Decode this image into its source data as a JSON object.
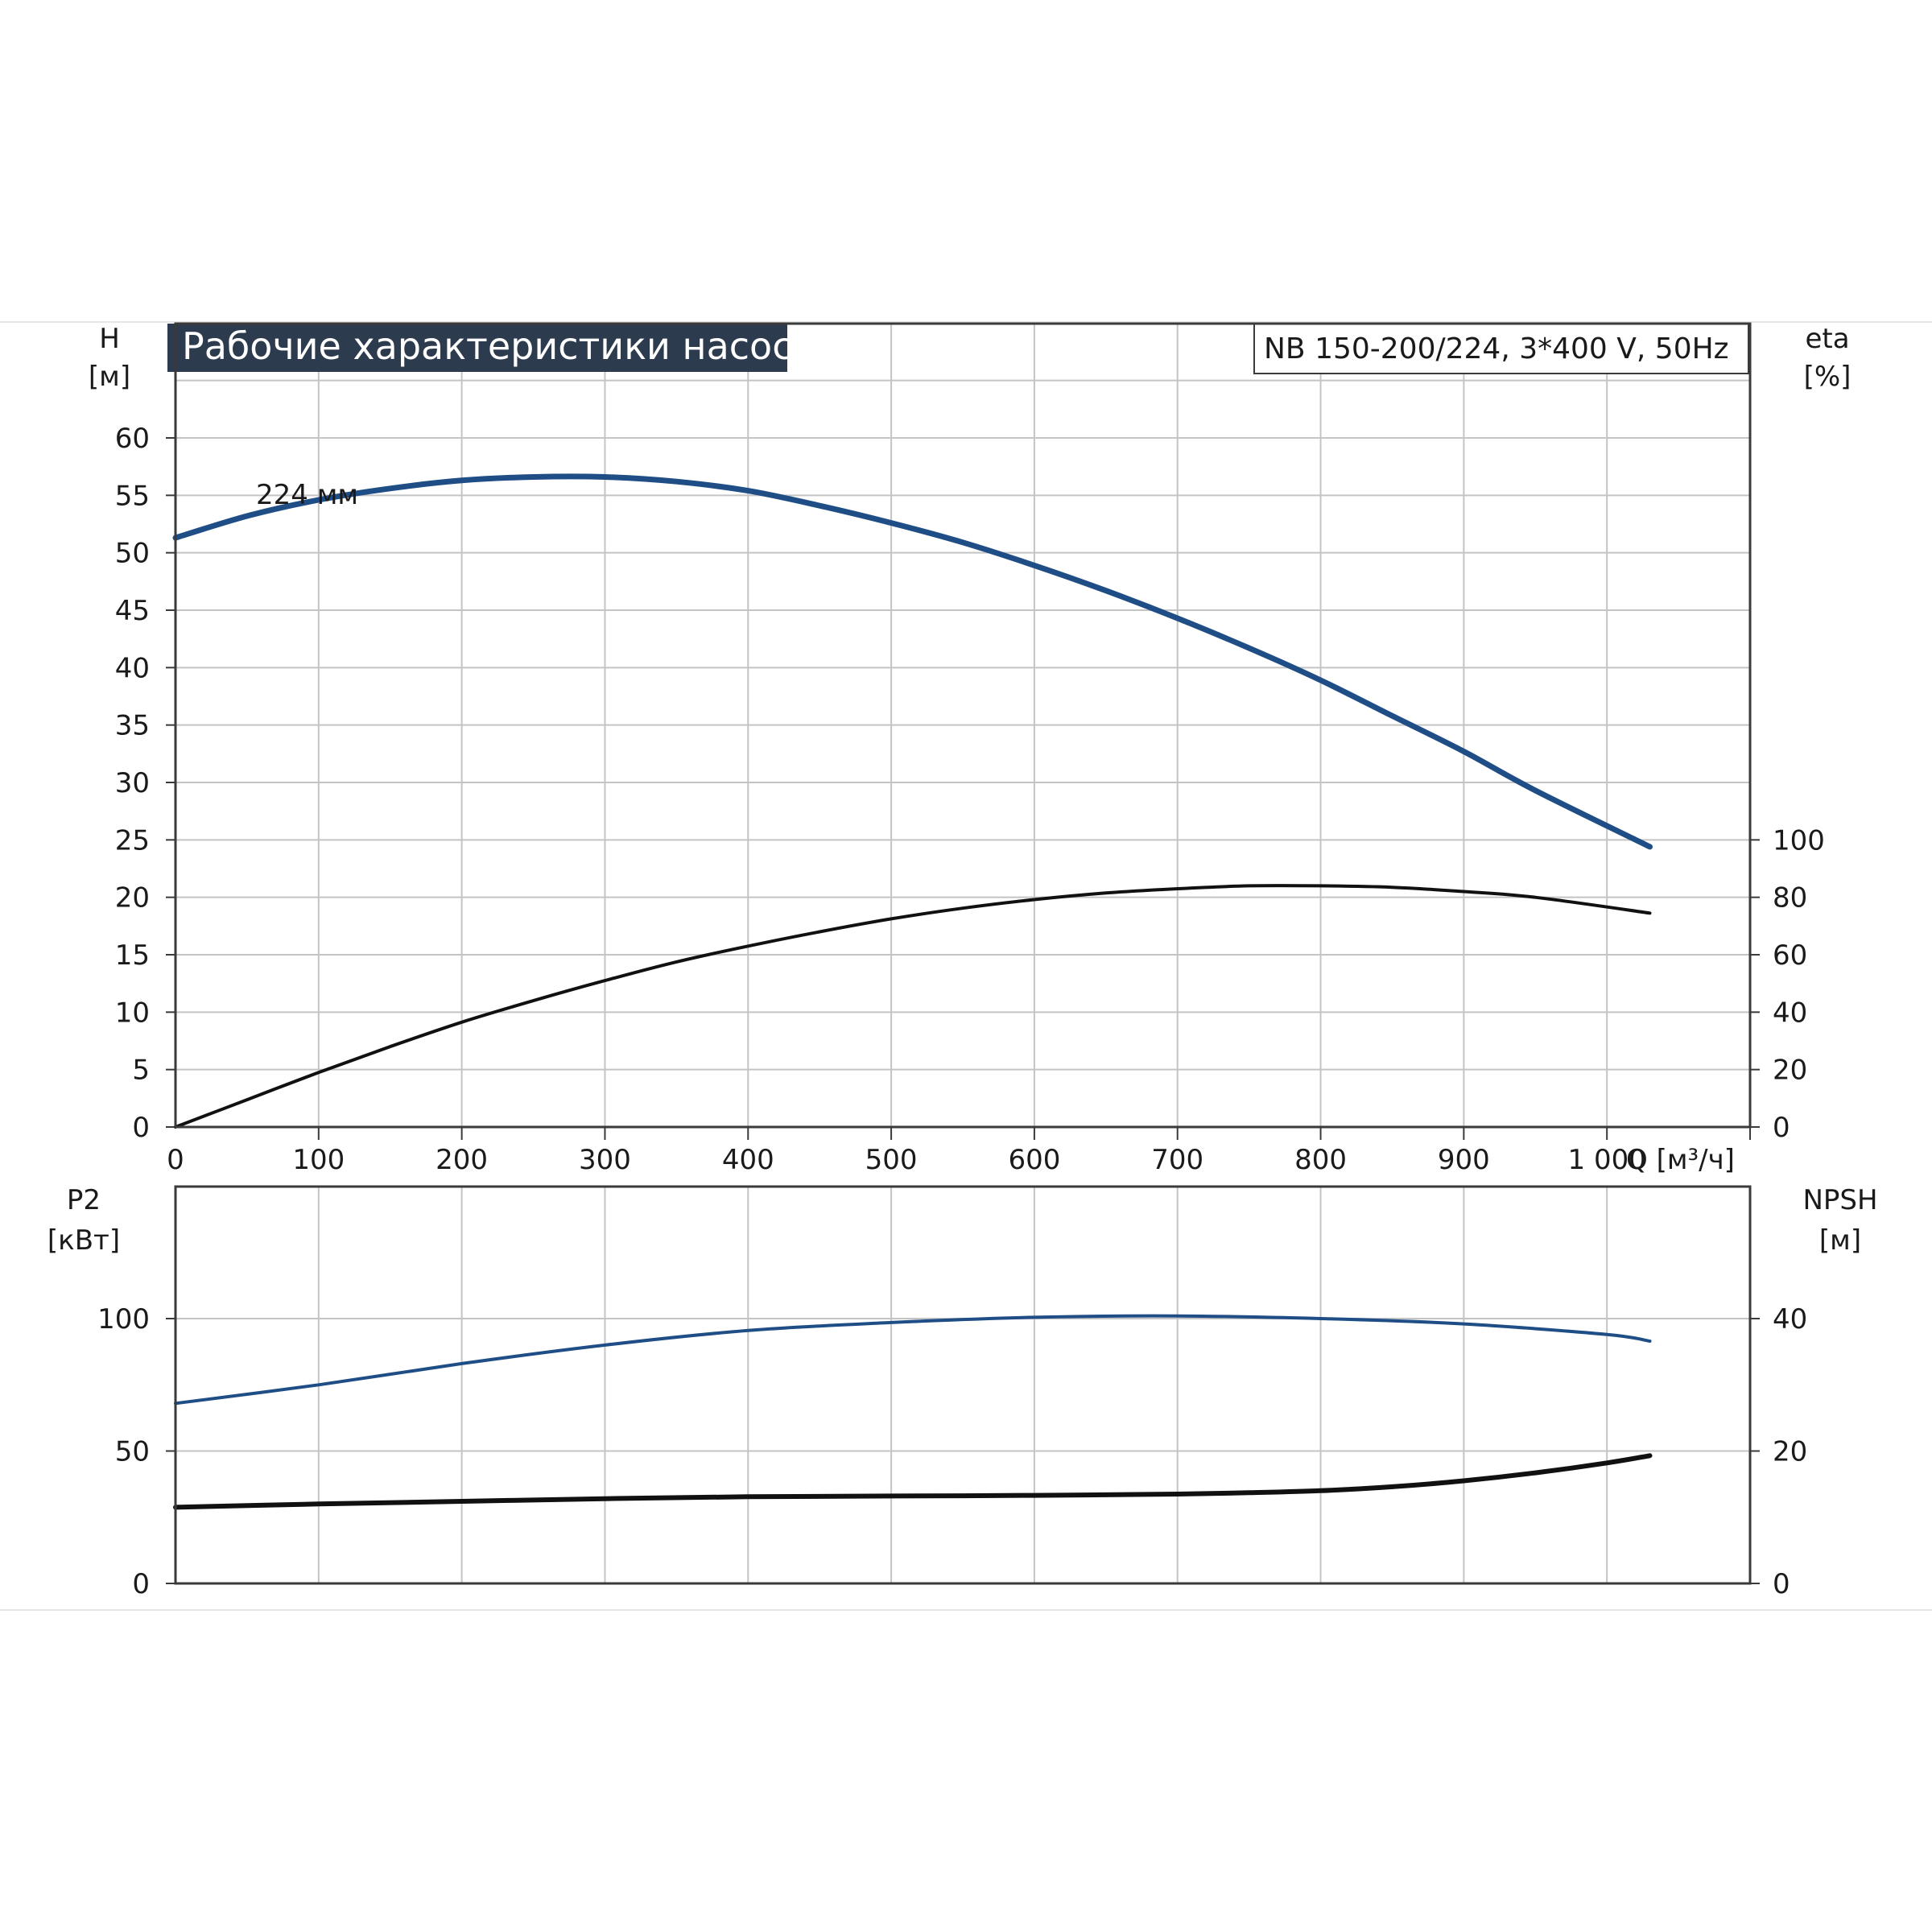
{
  "header": {
    "title": "Рабочие характеристики насоса",
    "model": "NB 150-200/224, 3*400 V, 50Hz"
  },
  "colors": {
    "head_curve": "#1f4e86",
    "power_curve": "#1f4e86",
    "efficiency_curve": "#111111",
    "npsh_curve": "#111111",
    "title_bg": "#2d3b4f",
    "grid": "#c4c4c4"
  },
  "chart_data": [
    {
      "type": "line",
      "panel": "top",
      "title": "Рабочие характеристики насоса",
      "xlabel": "Q [м³/ч]",
      "x_ticks": [
        "0",
        "100",
        "200",
        "300",
        "400",
        "500",
        "600",
        "700",
        "800",
        "900",
        "1 000"
      ],
      "x_tick_values": [
        0,
        100,
        200,
        300,
        400,
        500,
        600,
        700,
        800,
        900,
        1000
      ],
      "xlim": [
        0,
        1100
      ],
      "left_axis": {
        "label": "H",
        "unit": "[м]",
        "ylim": [
          0,
          65
        ],
        "ticks": [
          "0",
          "5",
          "10",
          "15",
          "20",
          "25",
          "30",
          "35",
          "40",
          "45",
          "50",
          "55",
          "60"
        ],
        "tick_values": [
          0,
          5,
          10,
          15,
          20,
          25,
          30,
          35,
          40,
          45,
          50,
          55,
          60
        ]
      },
      "right_axis": {
        "label": "eta",
        "unit": "[%]",
        "ylim": [
          0,
          200
        ],
        "ticks": [
          "0",
          "20",
          "40",
          "60",
          "80",
          "100"
        ],
        "tick_values": [
          0,
          20,
          40,
          60,
          80,
          100
        ]
      },
      "grid": true,
      "series": [
        {
          "name": "224 мм",
          "axis": "left",
          "x": [
            0,
            50,
            100,
            150,
            200,
            250,
            300,
            350,
            400,
            450,
            500,
            550,
            600,
            650,
            700,
            750,
            800,
            850,
            900,
            950,
            1030
          ],
          "y": [
            51.3,
            53.2,
            54.6,
            55.6,
            56.3,
            56.6,
            56.6,
            56.2,
            55.4,
            54.1,
            52.6,
            50.9,
            48.9,
            46.7,
            44.3,
            41.7,
            38.9,
            35.8,
            32.7,
            29.3,
            24.4
          ]
        },
        {
          "name": "",
          "axis": "right",
          "x": [
            0,
            50,
            100,
            150,
            200,
            250,
            300,
            350,
            400,
            450,
            500,
            550,
            600,
            650,
            700,
            750,
            800,
            850,
            900,
            950,
            1030
          ],
          "y": [
            0,
            9.5,
            19,
            28,
            36.5,
            44,
            51,
            57.5,
            63,
            68,
            72.5,
            76.2,
            79.2,
            81.5,
            83,
            84,
            84,
            83.5,
            82,
            80,
            74.5
          ]
        }
      ]
    },
    {
      "type": "line",
      "panel": "bottom",
      "left_axis": {
        "label": "P2",
        "unit": "[кВт]",
        "ylim": [
          0,
          150
        ],
        "ticks": [
          "0",
          "50",
          "100"
        ],
        "tick_values": [
          0,
          50,
          100
        ]
      },
      "right_axis": {
        "label": "NPSH",
        "unit": "[м]",
        "ylim": [
          0,
          60
        ],
        "ticks": [
          "0",
          "20",
          "40"
        ],
        "tick_values": [
          0,
          20,
          40
        ]
      },
      "xlim": [
        0,
        1100
      ],
      "grid": true,
      "series": [
        {
          "name": "",
          "axis": "left",
          "x": [
            0,
            100,
            200,
            300,
            400,
            500,
            600,
            700,
            800,
            900,
            1000,
            1030
          ],
          "y": [
            68,
            75,
            83,
            90,
            95.5,
            98.5,
            100.5,
            101,
            100,
            98,
            94,
            91.5
          ]
        },
        {
          "name": "",
          "axis": "right",
          "x": [
            0,
            100,
            200,
            300,
            400,
            500,
            600,
            700,
            750,
            800,
            850,
            900,
            950,
            1000,
            1030
          ],
          "y": [
            11.5,
            12,
            12.4,
            12.8,
            13.1,
            13.2,
            13.3,
            13.5,
            13.7,
            14,
            14.6,
            15.5,
            16.7,
            18.2,
            19.3
          ]
        }
      ]
    }
  ]
}
